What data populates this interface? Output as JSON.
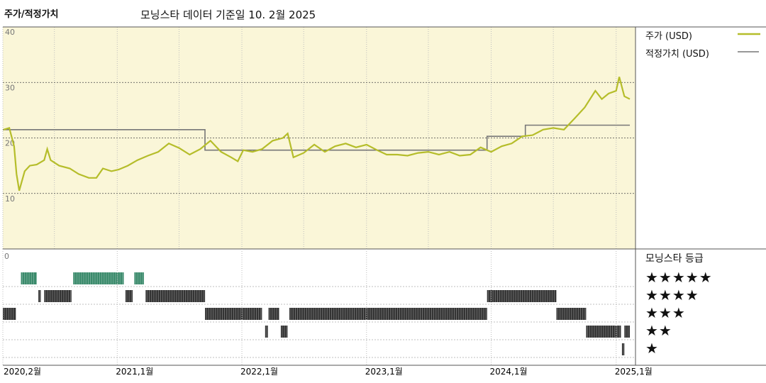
{
  "header": {
    "left_title": "주가/적정가치",
    "main_title": "모닝스타 데이터 기준일 10. 2월 2025"
  },
  "legend": {
    "price_label": "주가 (USD)",
    "fair_label": "적정가치 (USD)",
    "rating_title": "모닝스타 등급",
    "stars": [
      "★★★★★",
      "★★★★",
      "★★★",
      "★★",
      "★"
    ]
  },
  "colors": {
    "price": "#b5bd2a",
    "fair": "#777777",
    "panel_bg": "#faf6d8",
    "five_star_bar": "#3a8a6b",
    "rating_bar": "#333333"
  },
  "chart_data": [
    {
      "type": "line",
      "title": "주가/적정가치",
      "x_range": [
        "2020-02-01",
        "2025-02-10"
      ],
      "ylim": [
        0,
        40
      ],
      "yticks": [
        10,
        20,
        30,
        40
      ],
      "grid": true,
      "legend_position": "top-right",
      "series": [
        {
          "name": "주가 (USD)",
          "points": [
            [
              "2020-02-03",
              21.5
            ],
            [
              "2020-02-20",
              21.8
            ],
            [
              "2020-03-05",
              18.5
            ],
            [
              "2020-03-12",
              13.5
            ],
            [
              "2020-03-20",
              10.5
            ],
            [
              "2020-04-05",
              14.0
            ],
            [
              "2020-04-20",
              15.0
            ],
            [
              "2020-05-10",
              15.2
            ],
            [
              "2020-06-01",
              16.0
            ],
            [
              "2020-06-10",
              18.0
            ],
            [
              "2020-06-20",
              16.0
            ],
            [
              "2020-07-15",
              15.0
            ],
            [
              "2020-08-15",
              14.5
            ],
            [
              "2020-09-10",
              13.5
            ],
            [
              "2020-10-10",
              12.8
            ],
            [
              "2020-11-01",
              12.8
            ],
            [
              "2020-11-20",
              14.5
            ],
            [
              "2020-12-15",
              14.0
            ],
            [
              "2021-01-05",
              14.3
            ],
            [
              "2021-02-01",
              15.0
            ],
            [
              "2021-03-01",
              16.0
            ],
            [
              "2021-04-01",
              16.8
            ],
            [
              "2021-05-01",
              17.5
            ],
            [
              "2021-06-01",
              19.0
            ],
            [
              "2021-07-01",
              18.2
            ],
            [
              "2021-08-01",
              17.0
            ],
            [
              "2021-09-01",
              18.0
            ],
            [
              "2021-10-01",
              19.5
            ],
            [
              "2021-11-01",
              17.5
            ],
            [
              "2021-12-01",
              16.5
            ],
            [
              "2021-12-20",
              15.8
            ],
            [
              "2022-01-05",
              17.8
            ],
            [
              "2022-02-01",
              17.5
            ],
            [
              "2022-03-01",
              18.0
            ],
            [
              "2022-04-01",
              19.5
            ],
            [
              "2022-05-01",
              20.0
            ],
            [
              "2022-05-15",
              20.8
            ],
            [
              "2022-06-01",
              16.5
            ],
            [
              "2022-07-01",
              17.3
            ],
            [
              "2022-08-01",
              18.8
            ],
            [
              "2022-09-01",
              17.5
            ],
            [
              "2022-10-01",
              18.5
            ],
            [
              "2022-11-01",
              19.0
            ],
            [
              "2022-12-01",
              18.3
            ],
            [
              "2023-01-01",
              18.8
            ],
            [
              "2023-02-01",
              17.8
            ],
            [
              "2023-03-01",
              17.0
            ],
            [
              "2023-04-01",
              17.0
            ],
            [
              "2023-05-01",
              16.8
            ],
            [
              "2023-06-01",
              17.3
            ],
            [
              "2023-07-01",
              17.5
            ],
            [
              "2023-08-01",
              17.0
            ],
            [
              "2023-09-01",
              17.5
            ],
            [
              "2023-10-01",
              16.8
            ],
            [
              "2023-11-01",
              17.0
            ],
            [
              "2023-12-01",
              18.3
            ],
            [
              "2024-01-01",
              17.5
            ],
            [
              "2024-02-01",
              18.5
            ],
            [
              "2024-03-01",
              19.0
            ],
            [
              "2024-04-01",
              20.3
            ],
            [
              "2024-05-01",
              20.5
            ],
            [
              "2024-06-01",
              21.5
            ],
            [
              "2024-07-01",
              21.8
            ],
            [
              "2024-08-01",
              21.5
            ],
            [
              "2024-09-01",
              23.5
            ],
            [
              "2024-10-01",
              25.5
            ],
            [
              "2024-11-01",
              28.5
            ],
            [
              "2024-11-20",
              27.0
            ],
            [
              "2024-12-10",
              28.0
            ],
            [
              "2025-01-01",
              28.5
            ],
            [
              "2025-01-10",
              31.0
            ],
            [
              "2025-01-25",
              27.5
            ],
            [
              "2025-02-10",
              27.0
            ]
          ]
        },
        {
          "name": "적정가치 (USD)",
          "points": [
            [
              "2020-02-01",
              21.5
            ],
            [
              "2021-09-15",
              21.5
            ],
            [
              "2021-09-15",
              17.8
            ],
            [
              "2023-12-20",
              17.8
            ],
            [
              "2023-12-20",
              20.3
            ],
            [
              "2024-04-10",
              20.3
            ],
            [
              "2024-04-10",
              22.3
            ],
            [
              "2025-02-10",
              22.3
            ]
          ]
        }
      ]
    },
    {
      "type": "table",
      "title": "모닝스타 등급",
      "x_range": [
        "2020-02-01",
        "2025-02-10"
      ],
      "rows": [
        "★★★★★",
        "★★★★",
        "★★★",
        "★★",
        "★"
      ],
      "periods": [
        {
          "rating": 3,
          "start": "2020-02-01",
          "end": "2020-03-10"
        },
        {
          "rating": 5,
          "start": "2020-03-25",
          "end": "2020-05-10"
        },
        {
          "rating": 4,
          "start": "2020-05-15",
          "end": "2020-05-22"
        },
        {
          "rating": 4,
          "start": "2020-06-01",
          "end": "2020-08-20"
        },
        {
          "rating": 5,
          "start": "2020-08-25",
          "end": "2021-01-20"
        },
        {
          "rating": 4,
          "start": "2021-01-25",
          "end": "2021-02-15"
        },
        {
          "rating": 5,
          "start": "2021-02-20",
          "end": "2021-03-20"
        },
        {
          "rating": 4,
          "start": "2021-03-25",
          "end": "2021-09-15"
        },
        {
          "rating": 3,
          "start": "2021-09-15",
          "end": "2022-03-01"
        },
        {
          "rating": 2,
          "start": "2022-03-10",
          "end": "2022-03-18"
        },
        {
          "rating": 3,
          "start": "2022-03-20",
          "end": "2022-04-20"
        },
        {
          "rating": 2,
          "start": "2022-04-25",
          "end": "2022-05-15"
        },
        {
          "rating": 3,
          "start": "2022-05-20",
          "end": "2023-12-20"
        },
        {
          "rating": 4,
          "start": "2023-12-20",
          "end": "2024-07-10"
        },
        {
          "rating": 3,
          "start": "2024-07-10",
          "end": "2024-10-05"
        },
        {
          "rating": 2,
          "start": "2024-10-05",
          "end": "2025-01-15"
        },
        {
          "rating": 1,
          "start": "2025-01-18",
          "end": "2025-01-25"
        },
        {
          "rating": 2,
          "start": "2025-01-25",
          "end": "2025-02-10"
        }
      ],
      "x_tick_labels": [
        "2020,2월",
        "2021,1월",
        "2022,1월",
        "2023,1월",
        "2024,1월",
        "2025,1월"
      ],
      "x_tick_dates": [
        "2020-02-01",
        "2021-01-01",
        "2022-01-01",
        "2023-01-01",
        "2024-01-01",
        "2025-01-01"
      ]
    }
  ]
}
